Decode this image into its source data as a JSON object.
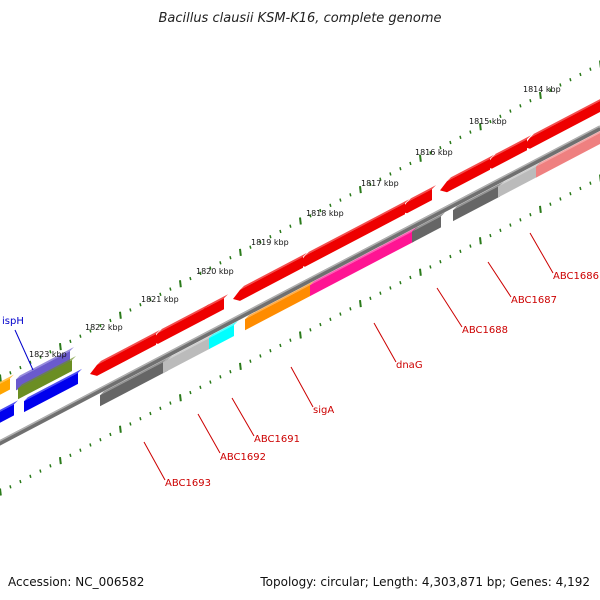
{
  "title": "Bacillus clausii KSM-K16, complete genome",
  "footer": {
    "accession": "Accession: NC_006582",
    "summary": "Topology: circular; Length: 4,303,871 bp; Genes: 4,192"
  },
  "kbp_ticks": [
    "1814 kbp",
    "1815 kbp",
    "1816 kbp",
    "1817 kbp",
    "1818 kbp",
    "1819 kbp",
    "1820 kbp",
    "1821 kbp",
    "1822 kbp",
    "1823 kbp"
  ],
  "gene_labels": [
    {
      "text": "ispH",
      "color": "#0000cc"
    },
    {
      "text": "ABC1686",
      "color": "#cc0000"
    },
    {
      "text": "ABC1687",
      "color": "#cc0000"
    },
    {
      "text": "ABC1688",
      "color": "#cc0000"
    },
    {
      "text": "dnaG",
      "color": "#cc0000"
    },
    {
      "text": "sigA",
      "color": "#cc0000"
    },
    {
      "text": "ABC1691",
      "color": "#cc0000"
    },
    {
      "text": "ABC1692",
      "color": "#cc0000"
    },
    {
      "text": "ABC1693",
      "color": "#cc0000"
    }
  ],
  "colors": {
    "backbone": "#808080",
    "tick": "#2a7a1a",
    "red_feature": "#ee0000",
    "dark_gray_feature": "#666666",
    "light_gray_feature": "#bbbbbb",
    "orange_feature": "#ff8c00",
    "cyan_feature": "#00ffff",
    "magenta_feature": "#ff1493",
    "pink_feature": "#ef8080",
    "blue_feature": "#0000ee",
    "purple_feature": "#6a5acd",
    "olive_feature": "#6b8e23"
  }
}
